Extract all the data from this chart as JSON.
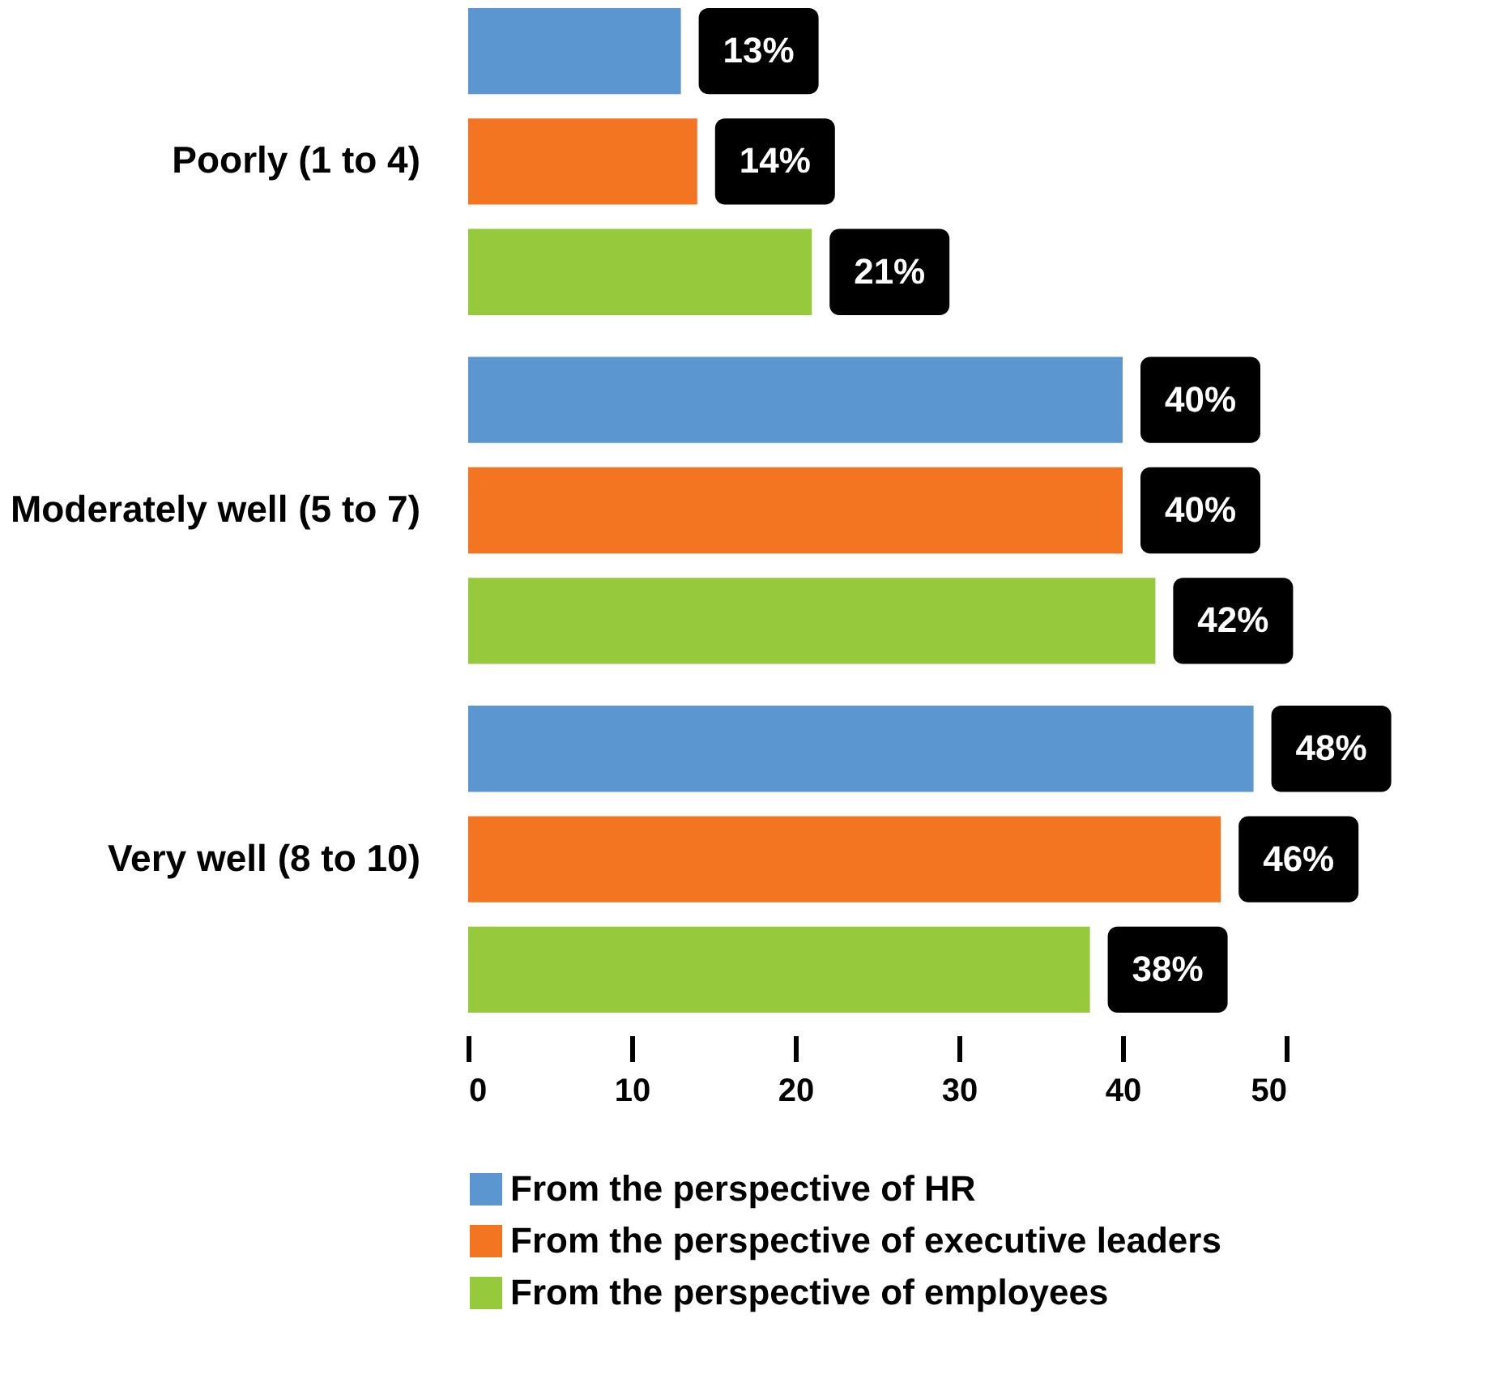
{
  "chart_data": {
    "type": "bar",
    "orientation": "horizontal",
    "categories": [
      "Poorly (1 to 4)",
      "Moderately well (5 to 7)",
      "Very well (8 to 10)"
    ],
    "series": [
      {
        "name": "From the perspective of HR",
        "color": "#5b96d0",
        "values": [
          13,
          40,
          48
        ],
        "value_labels": [
          "13%",
          "40%",
          "48%"
        ]
      },
      {
        "name": "From the perspective of executive leaders",
        "color": "#f37421",
        "values": [
          14,
          40,
          46
        ],
        "value_labels": [
          "14%",
          "40%",
          "46%"
        ]
      },
      {
        "name": "From the perspective of employees",
        "color": "#97c93d",
        "values": [
          21,
          42,
          38
        ],
        "value_labels": [
          "21%",
          "42%",
          "38%"
        ]
      }
    ],
    "xlim": [
      0,
      50
    ],
    "xticks": [
      0,
      10,
      20,
      30,
      40,
      50
    ],
    "grid": false,
    "legend": "bottom"
  }
}
